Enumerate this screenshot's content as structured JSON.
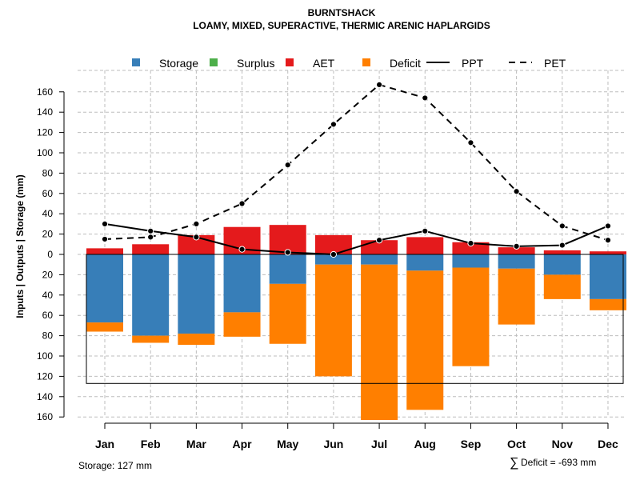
{
  "chart_data": {
    "type": "bar",
    "title": "BURNTSHACK",
    "subtitle": "LOAMY, MIXED, SUPERACTIVE, THERMIC ARENIC HAPLARGIDS",
    "ylabel": "Inputs | Outputs | Storage    (mm)",
    "categories": [
      "Jan",
      "Feb",
      "Mar",
      "Apr",
      "May",
      "Jun",
      "Jul",
      "Aug",
      "Sep",
      "Oct",
      "Nov",
      "Dec"
    ],
    "ylim": [
      -160,
      170
    ],
    "y_ticks": [
      160,
      140,
      120,
      100,
      80,
      60,
      40,
      20,
      0,
      -20,
      -40,
      -60,
      -80,
      -100,
      -120,
      -140,
      -160
    ],
    "y_tick_labels": [
      "160",
      "140",
      "120",
      "100",
      "80",
      "60",
      "40",
      "20",
      "0",
      "20",
      "40",
      "60",
      "80",
      "100",
      "120",
      "140",
      "160"
    ],
    "legend": {
      "placement": "top",
      "items": [
        {
          "label": "Storage",
          "kind": "square",
          "color": "#377eb8"
        },
        {
          "label": "Surplus",
          "kind": "square",
          "color": "#4daf4a"
        },
        {
          "label": "AET",
          "kind": "square",
          "color": "#e41a1c"
        },
        {
          "label": "Deficit",
          "kind": "square",
          "color": "#ff7f00"
        },
        {
          "label": "PPT",
          "kind": "solid-line",
          "color": "#000000"
        },
        {
          "label": "PET",
          "kind": "dashed-line",
          "color": "#000000"
        }
      ]
    },
    "series": [
      {
        "name": "AET",
        "color": "#e41a1c",
        "values": [
          6,
          10,
          19,
          27,
          29,
          19,
          14,
          17,
          12,
          7,
          4,
          3
        ]
      },
      {
        "name": "Storage",
        "color": "#377eb8",
        "values": [
          -67,
          -80,
          -78,
          -57,
          -29,
          -10,
          -10,
          -16,
          -13,
          -14,
          -20,
          -44
        ]
      },
      {
        "name": "Deficit",
        "color": "#ff7f00",
        "values": [
          -9,
          -7,
          -11,
          -24,
          -59,
          -110,
          -153,
          -137,
          -97,
          -55,
          -24,
          -11
        ]
      },
      {
        "name": "Surplus",
        "color": "#4daf4a",
        "values": [
          0,
          0,
          0,
          0,
          0,
          0,
          0,
          0,
          0,
          0,
          0,
          0
        ]
      },
      {
        "name": "PPT",
        "color": "#000000",
        "values": [
          30,
          23,
          17,
          5,
          2,
          0,
          14,
          23,
          11,
          8,
          9,
          28
        ]
      },
      {
        "name": "PET",
        "color": "#000000",
        "values": [
          15,
          17,
          30,
          50,
          88,
          128,
          167,
          154,
          110,
          62,
          28,
          14
        ]
      }
    ],
    "storage_capacity": 127,
    "notes": {
      "storage": "Storage: 127 mm",
      "deficit_symbol": "∑",
      "deficit": "Deficit = -693 mm"
    }
  }
}
